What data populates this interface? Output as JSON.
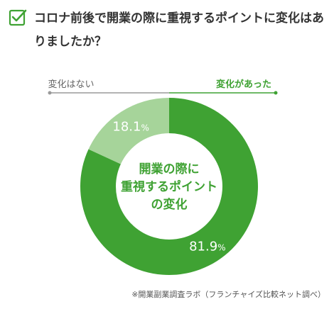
{
  "question": {
    "icon": "checkbox-check-icon",
    "text": "コロナ前後で開業の際に重視するポイントに変化はありましたか？"
  },
  "colors": {
    "accent": "#3fa233",
    "accent_light": "#a6d49a",
    "callout_line_light": "#9a9a9a",
    "title_text": "#333333"
  },
  "chart_data": {
    "type": "pie",
    "title": "",
    "center_label": [
      "開業の際に",
      "重視するポイント",
      "の変化"
    ],
    "slices": [
      {
        "label": "変化があった",
        "value": 81.9,
        "value_text": "81.9",
        "unit": "%",
        "color": "#3fa233"
      },
      {
        "label": "変化はない",
        "value": 18.1,
        "value_text": "18.1",
        "unit": "%",
        "color": "#a6d49a"
      }
    ]
  },
  "footer": {
    "source": "※開業副業調査ラボ（フランチャイズ比較ネット調べ）"
  }
}
